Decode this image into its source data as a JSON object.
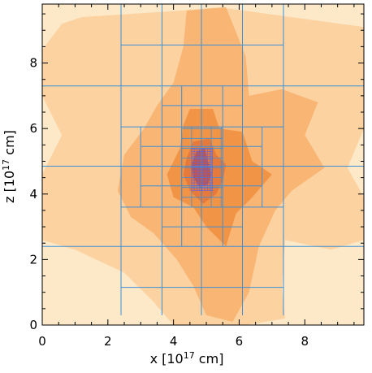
{
  "chart_data": {
    "type": "heatmap",
    "title": "",
    "xlabel": "x [10",
    "xlabel_exp": "17",
    "xlabel_unit": " cm]",
    "ylabel": "z [10",
    "ylabel_exp": "17",
    "ylabel_unit": " cm]",
    "xlim": [
      0,
      9.8
    ],
    "ylim": [
      0,
      9.8
    ],
    "xticks": [
      0,
      2,
      4,
      6,
      8
    ],
    "yticks": [
      0,
      2,
      4,
      6,
      8
    ],
    "grid": false,
    "colors": {
      "level0": "#fde8c8",
      "level1": "#fbd2a0",
      "level2": "#f8b574",
      "level3": "#f29446",
      "level4": "#e67a3c",
      "level5": "#c8563f",
      "mesh": "#3d8fd6",
      "mesh_fine": "#6a5fd2"
    },
    "density_levels": [
      {
        "level": 1,
        "regions": [
          [
            [
              1.2,
              9.4
            ],
            [
              4.2,
              9.6
            ],
            [
              5.4,
              9.7
            ],
            [
              7.6,
              9.4
            ],
            [
              9.8,
              9.1
            ],
            [
              9.8,
              7.4
            ],
            [
              9.8,
              6.0
            ],
            [
              9.3,
              4.8
            ],
            [
              9.8,
              3.9
            ],
            [
              9.8,
              2.6
            ],
            [
              8.8,
              2.3
            ],
            [
              7.4,
              2.6
            ],
            [
              7.3,
              1.1
            ],
            [
              7.4,
              0.2
            ],
            [
              6.2,
              0.0
            ],
            [
              4.0,
              0.0
            ],
            [
              3.4,
              0.7
            ],
            [
              2.5,
              1.6
            ],
            [
              1.0,
              2.3
            ],
            [
              0.0,
              2.6
            ],
            [
              0.0,
              4.6
            ],
            [
              0.6,
              5.8
            ],
            [
              0.0,
              7.0
            ],
            [
              0.0,
              8.4
            ],
            [
              0.6,
              9.2
            ]
          ]
        ]
      },
      {
        "level": 2,
        "regions": [
          [
            [
              4.4,
              9.6
            ],
            [
              5.6,
              9.7
            ],
            [
              6.2,
              8.2
            ],
            [
              6.3,
              7.0
            ],
            [
              7.3,
              7.2
            ],
            [
              8.4,
              6.8
            ],
            [
              8.0,
              5.8
            ],
            [
              8.6,
              4.8
            ],
            [
              7.6,
              4.1
            ],
            [
              7.1,
              3.5
            ],
            [
              6.6,
              2.4
            ],
            [
              6.3,
              1.0
            ],
            [
              5.8,
              0.1
            ],
            [
              5.0,
              0.3
            ],
            [
              4.6,
              1.2
            ],
            [
              4.1,
              2.0
            ],
            [
              3.4,
              2.8
            ],
            [
              2.7,
              3.3
            ],
            [
              2.3,
              4.1
            ],
            [
              2.5,
              5.2
            ],
            [
              3.1,
              6.0
            ],
            [
              3.5,
              6.7
            ],
            [
              4.0,
              7.4
            ],
            [
              4.3,
              8.5
            ]
          ]
        ]
      },
      {
        "level": 3,
        "regions": [
          [
            [
              4.5,
              6.6
            ],
            [
              5.2,
              6.6
            ],
            [
              5.4,
              6.0
            ],
            [
              6.1,
              5.9
            ],
            [
              6.4,
              5.0
            ],
            [
              7.0,
              4.6
            ],
            [
              6.4,
              3.9
            ],
            [
              5.9,
              3.4
            ],
            [
              5.6,
              2.4
            ],
            [
              5.0,
              3.0
            ],
            [
              4.6,
              3.6
            ],
            [
              4.0,
              3.9
            ],
            [
              3.8,
              4.6
            ],
            [
              4.2,
              5.4
            ],
            [
              4.3,
              6.1
            ]
          ]
        ]
      },
      {
        "level": 4,
        "regions": [
          [
            [
              4.6,
              5.6
            ],
            [
              5.1,
              5.7
            ],
            [
              5.3,
              5.2
            ],
            [
              5.6,
              4.9
            ],
            [
              5.5,
              4.4
            ],
            [
              5.3,
              4.0
            ],
            [
              4.9,
              3.7
            ],
            [
              4.5,
              4.1
            ],
            [
              4.3,
              4.6
            ],
            [
              4.4,
              5.1
            ]
          ]
        ]
      },
      {
        "level": 5,
        "regions": [
          [
            [
              4.7,
              5.3
            ],
            [
              4.95,
              5.4
            ],
            [
              5.05,
              5.0
            ],
            [
              5.15,
              4.6
            ],
            [
              5.05,
              4.3
            ],
            [
              4.8,
              4.2
            ],
            [
              4.6,
              4.5
            ],
            [
              4.55,
              4.9
            ]
          ]
        ]
      }
    ],
    "mesh_coarse_vlines": [
      {
        "x": 2.4,
        "y0": 0.3,
        "y1": 9.8
      },
      {
        "x": 3.65,
        "y0": 0.3,
        "y1": 9.8
      },
      {
        "x": 4.85,
        "y0": 0.3,
        "y1": 9.8
      },
      {
        "x": 6.1,
        "y0": 0.3,
        "y1": 9.8
      },
      {
        "x": 7.35,
        "y0": 0.3,
        "y1": 9.8
      }
    ],
    "mesh_coarse_hlines": [
      {
        "y": 2.4,
        "x0": 0,
        "x1": 9.8
      },
      {
        "y": 4.85,
        "x0": 0,
        "x1": 9.8
      },
      {
        "y": 7.3,
        "x0": 0,
        "x1": 9.8
      },
      {
        "y": 8.55,
        "x0": 2.4,
        "x1": 7.35
      },
      {
        "y": 6.05,
        "x0": 2.4,
        "x1": 7.35
      },
      {
        "y": 3.6,
        "x0": 2.4,
        "x1": 7.35
      },
      {
        "y": 1.15,
        "x0": 2.4,
        "x1": 7.35
      }
    ],
    "mesh_medium_vlines": [
      {
        "x": 4.25,
        "y0": 2.4,
        "y1": 7.3
      },
      {
        "x": 5.5,
        "y0": 2.4,
        "y1": 7.3
      },
      {
        "x": 3.0,
        "y0": 3.6,
        "y1": 6.05
      },
      {
        "x": 6.7,
        "y0": 3.6,
        "y1": 6.05
      }
    ],
    "mesh_medium_hlines": [
      {
        "y": 6.7,
        "x0": 3.65,
        "x1": 6.1
      },
      {
        "y": 5.45,
        "x0": 3.0,
        "x1": 6.7
      },
      {
        "y": 4.25,
        "x0": 3.0,
        "x1": 6.7
      },
      {
        "y": 3.0,
        "x0": 3.65,
        "x1": 6.1
      }
    ],
    "mesh_fine_box": {
      "x0": 4.25,
      "x1": 5.5,
      "y0": 3.6,
      "y1": 6.05
    },
    "mesh_fine_step": 0.3,
    "mesh_finest_box": {
      "x0": 4.55,
      "x1": 5.2,
      "y0": 4.1,
      "y1": 5.4
    },
    "mesh_finest_step": 0.08
  }
}
